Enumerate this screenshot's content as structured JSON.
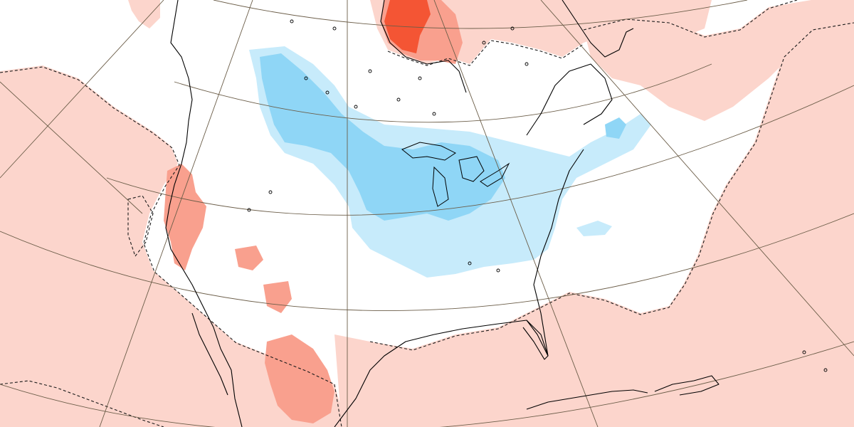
{
  "map": {
    "type": "temperature-anomaly-map",
    "region": "North America",
    "projection": "polar-stereographic",
    "colors": {
      "background": "#ffffff",
      "warm_light": "#fcd5cc",
      "warm_medium": "#f9a08e",
      "warm_strong": "#f45534",
      "cold_light": "#c7ebfb",
      "cold_medium": "#8fd6f6",
      "coastline": "#000000",
      "graticule": "#6b5d48",
      "zero_contour": "#1a1a1a"
    },
    "graticule": {
      "shown": true
    },
    "zero_contour": {
      "style": "dashed"
    },
    "colorbar": {
      "shown": false
    },
    "text_labels": []
  }
}
